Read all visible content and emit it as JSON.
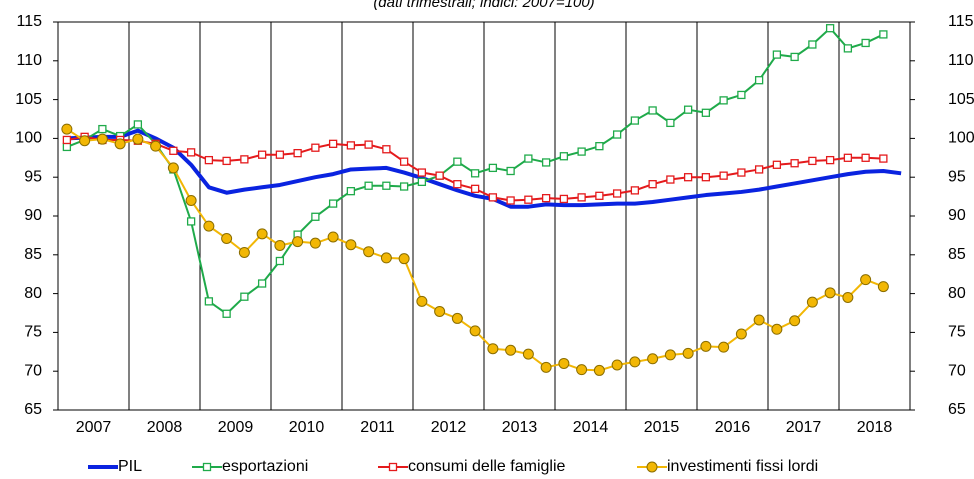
{
  "chart_data": {
    "type": "line",
    "subtitle": "(dati trimestrali; indici: 2007=100)",
    "categories": [
      null,
      "2007",
      null,
      null,
      null,
      "2008",
      null,
      null,
      null,
      "2009",
      null,
      null,
      null,
      "2010",
      null,
      null,
      null,
      "2011",
      null,
      null,
      null,
      "2012",
      null,
      null,
      null,
      "2013",
      null,
      null,
      null,
      "2014",
      null,
      null,
      null,
      "2015",
      null,
      null,
      null,
      "2016",
      null,
      null,
      null,
      "2017",
      null,
      null,
      null,
      "2018",
      null,
      null
    ],
    "ylim": [
      65,
      115
    ],
    "yticks": [
      65,
      70,
      75,
      80,
      85,
      90,
      95,
      100,
      105,
      110,
      115
    ],
    "series": [
      {
        "name": "PIL",
        "color": "#0a23e0",
        "marker": "none",
        "values": [
          100,
          100.1,
          100.2,
          100.2,
          101,
          100,
          98.8,
          96.6,
          93.7,
          93,
          93.4,
          93.7,
          94,
          94.5,
          95,
          95.4,
          96,
          96.1,
          96.2,
          95.6,
          94.9,
          94.1,
          93.3,
          92.6,
          92.2,
          91.2,
          91.2,
          91.5,
          91.4,
          91.4,
          91.5,
          91.6,
          91.6,
          91.8,
          92.1,
          92.4,
          92.7,
          92.9,
          93.1,
          93.4,
          93.8,
          94.2,
          94.6,
          95,
          95.4,
          95.7,
          95.8,
          95.5
        ]
      },
      {
        "name": "esportazioni",
        "color": "#1faa4a",
        "marker": "square",
        "values": [
          98.9,
          99.8,
          101.2,
          100.3,
          101.8,
          99.3,
          96,
          89.3,
          79,
          77.4,
          79.6,
          81.3,
          84.2,
          87.6,
          89.9,
          91.6,
          93.2,
          93.9,
          93.9,
          93.8,
          94.4,
          95.2,
          97,
          95.5,
          96.2,
          95.8,
          97.4,
          96.9,
          97.7,
          98.3,
          99,
          100.5,
          102.3,
          103.6,
          102,
          103.7,
          103.3,
          104.9,
          105.6,
          107.5,
          110.8,
          110.5,
          112.1,
          114.2,
          111.6,
          112.3,
          113.4,
          null
        ]
      },
      {
        "name": "consumi delle famiglie",
        "color": "#e41a1c",
        "marker": "square",
        "values": [
          99.8,
          100.2,
          99.8,
          99.8,
          99.7,
          99.3,
          98.4,
          98.2,
          97.2,
          97.1,
          97.3,
          97.9,
          97.9,
          98.1,
          98.8,
          99.3,
          99.1,
          99.2,
          98.6,
          97,
          95.6,
          95.2,
          94.1,
          93.5,
          92.4,
          92,
          92.1,
          92.3,
          92.2,
          92.4,
          92.6,
          92.9,
          93.3,
          94.1,
          94.7,
          95,
          95,
          95.2,
          95.6,
          96,
          96.6,
          96.8,
          97.1,
          97.2,
          97.5,
          97.5,
          97.4,
          null
        ]
      },
      {
        "name": "investimenti fissi lordi",
        "color": "#f2b705",
        "marker": "circle",
        "values": [
          101.2,
          99.7,
          99.9,
          99.3,
          99.9,
          99,
          96.2,
          92,
          88.7,
          87.1,
          85.3,
          87.7,
          86.2,
          86.7,
          86.5,
          87.3,
          86.3,
          85.4,
          84.6,
          84.5,
          79,
          77.7,
          76.8,
          75.2,
          72.9,
          72.7,
          72.2,
          70.5,
          71,
          70.2,
          70.1,
          70.8,
          71.2,
          71.6,
          72.1,
          72.3,
          73.2,
          73.1,
          74.8,
          76.6,
          75.4,
          76.5,
          78.9,
          80.1,
          79.5,
          81.8,
          80.9,
          null
        ]
      }
    ]
  }
}
